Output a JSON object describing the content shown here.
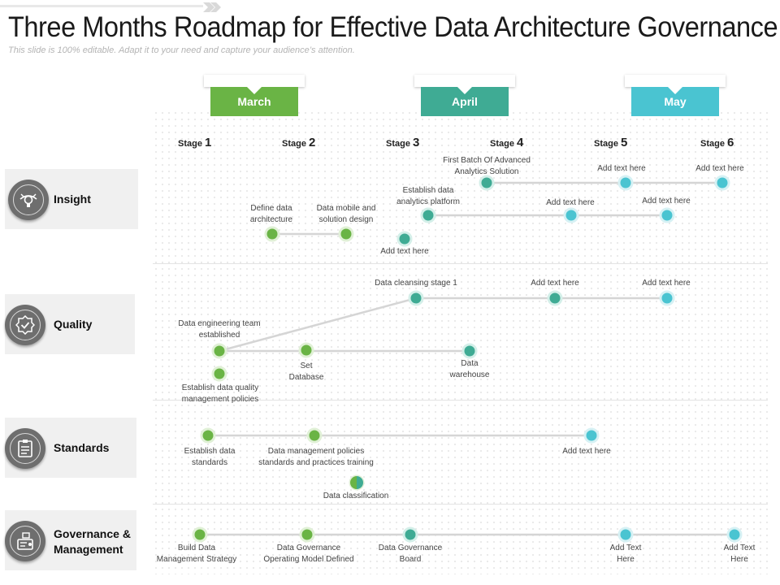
{
  "title": "Three Months Roadmap for Effective Data Architecture Governance",
  "subtitle": "This slide is 100% editable. Adapt it to your need and capture your audience’s attention.",
  "colors": {
    "green": "#6ab445",
    "teal": "#3fab94",
    "cyan": "#4ac4d1",
    "line": "#d5d5d5"
  },
  "months": [
    {
      "label": "March",
      "color": "#6ab445"
    },
    {
      "label": "April",
      "color": "#3fab94"
    },
    {
      "label": "May",
      "color": "#4ac4d1"
    }
  ],
  "stages": [
    {
      "word": "Stage",
      "num": "1"
    },
    {
      "word": "Stage",
      "num": "2"
    },
    {
      "word": "Stage",
      "num": "3"
    },
    {
      "word": "Stage",
      "num": "4"
    },
    {
      "word": "Stage",
      "num": "5"
    },
    {
      "word": "Stage",
      "num": "6"
    }
  ],
  "categories": [
    {
      "name": "Insight",
      "icon": "eye-bulb-icon"
    },
    {
      "name": "Quality",
      "icon": "quality-badge-icon"
    },
    {
      "name": "Standards",
      "icon": "checklist-icon"
    },
    {
      "name": "Governance & Management",
      "line1": "Governance &",
      "line2": "Management",
      "icon": "governance-icon"
    }
  ],
  "milestones": {
    "insight": [
      {
        "line1": "First Batch Of Advanced",
        "line2": "Analytics Solution"
      },
      {
        "line1": "Add text here"
      },
      {
        "line1": "Add text here"
      },
      {
        "line1": "Establish data",
        "line2": "analytics platform"
      },
      {
        "line1": "Add text here"
      },
      {
        "line1": "Add text here"
      },
      {
        "line1": "Define data",
        "line2": "architecture"
      },
      {
        "line1": "Data mobile and",
        "line2": "solution design"
      },
      {
        "line1": "Add text here"
      }
    ],
    "quality": [
      {
        "line1": "Data cleansing stage 1"
      },
      {
        "line1": "Add text here"
      },
      {
        "line1": "Add text here"
      },
      {
        "line1": "Data engineering team",
        "line2": "established"
      },
      {
        "line1": "Set",
        "line2": "Database"
      },
      {
        "line1": "Data",
        "line2": "warehouse"
      },
      {
        "line1": "Establish data quality",
        "line2": "management policies"
      }
    ],
    "standards": [
      {
        "line1": "Establish data",
        "line2": "standards"
      },
      {
        "line1": "Data management policies",
        "line2": "standards and practices training"
      },
      {
        "line1": "Add text here"
      },
      {
        "line1": "Data classification"
      }
    ],
    "governance": [
      {
        "line1": "Build Data",
        "line2": "Management Strategy"
      },
      {
        "line1": "Data Governance",
        "line2": "Operating Model Defined"
      },
      {
        "line1": "Data Governance",
        "line2": "Board"
      },
      {
        "line1": "Add Text",
        "line2": "Here"
      },
      {
        "line1": "Add Text",
        "line2": "Here"
      }
    ]
  }
}
